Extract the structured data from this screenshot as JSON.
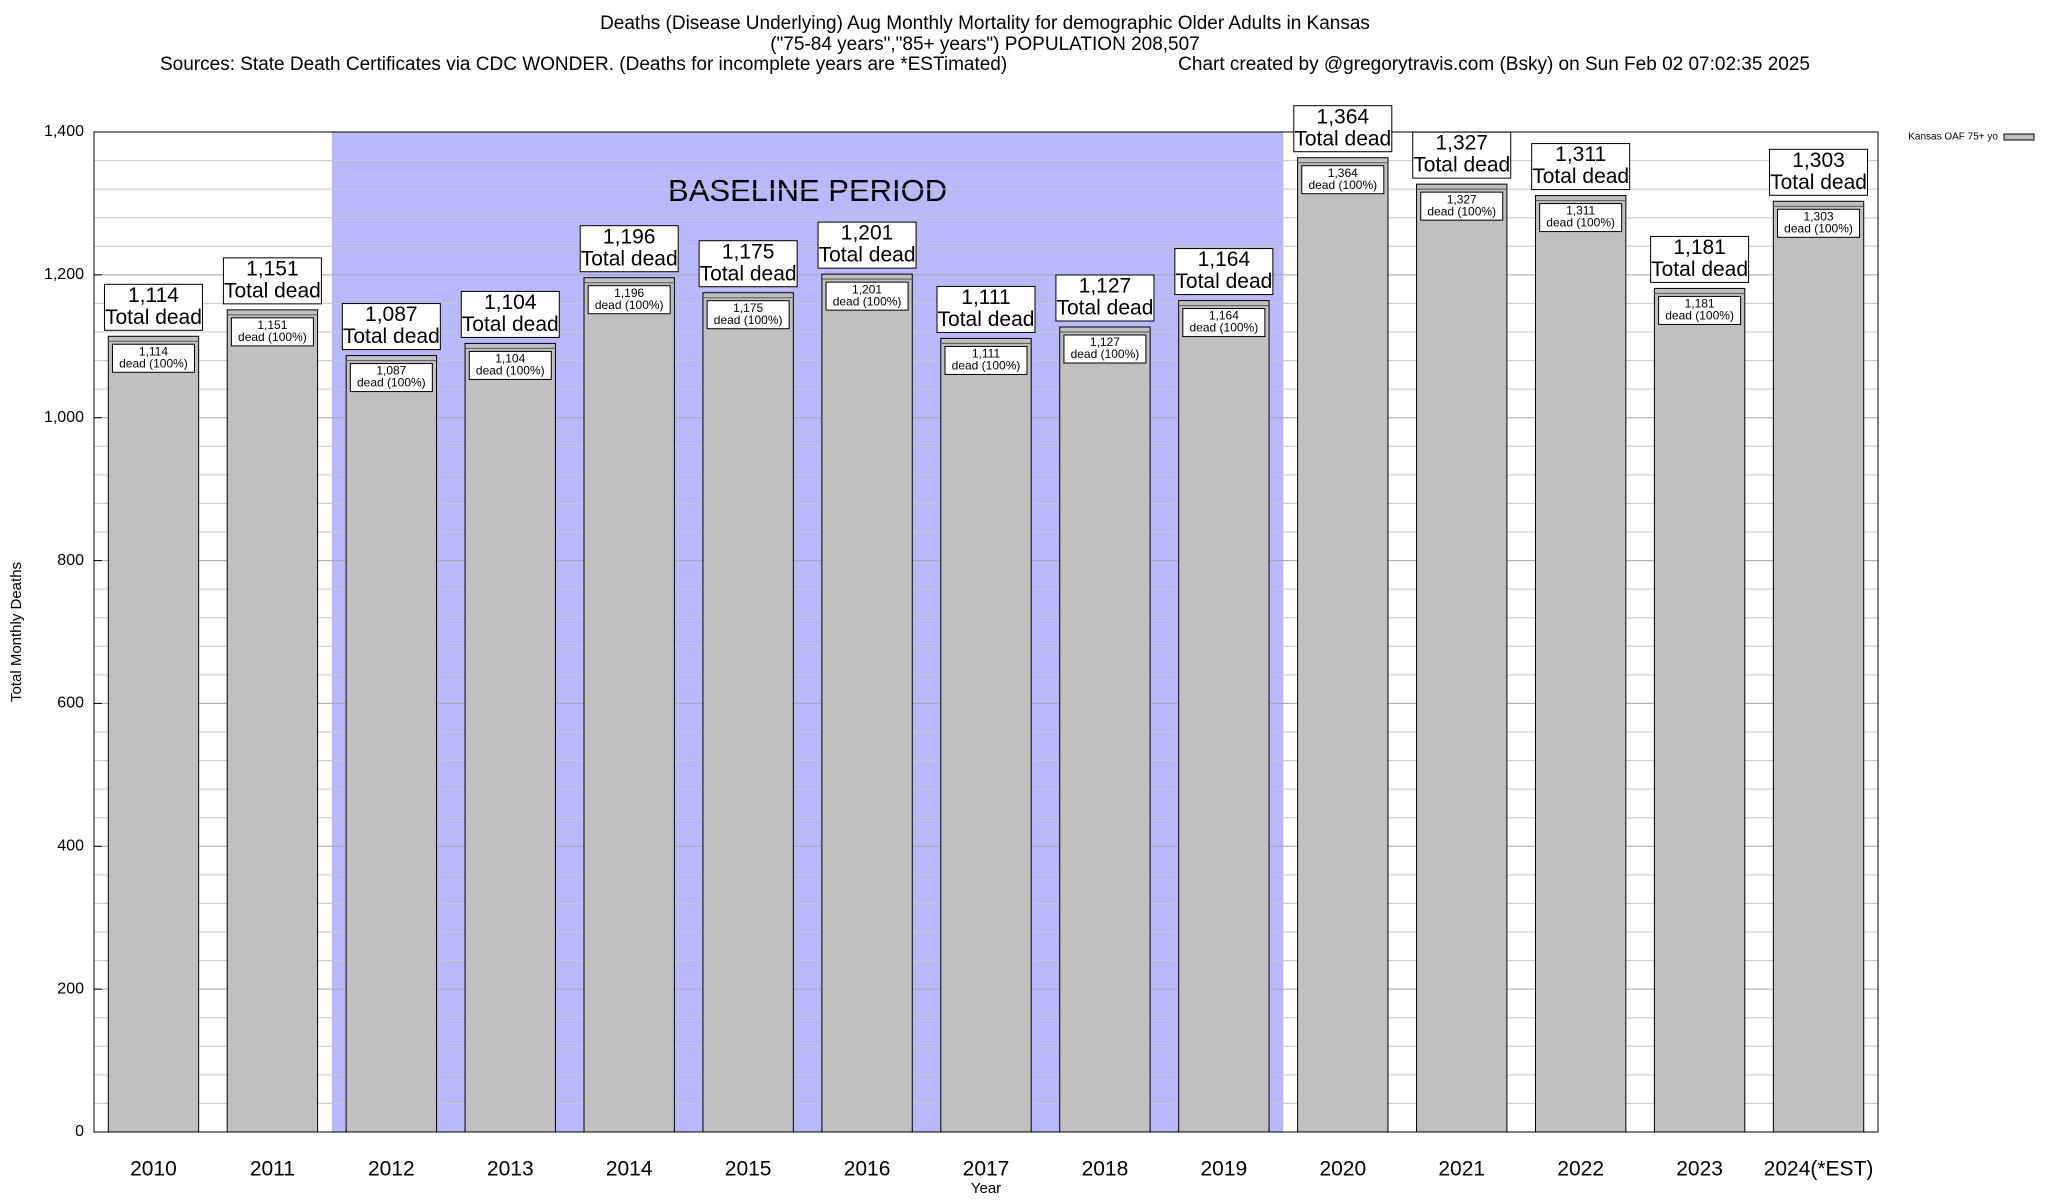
{
  "chart_data": {
    "type": "bar",
    "title": "Deaths (Disease Underlying) Aug Monthly Mortality for demographic Older Adults in Kansas",
    "subtitle": "(\"75-84 years\",\"85+ years\") POPULATION 208,507",
    "source": "Sources: State Death Certificates via CDC WONDER. (Deaths for incomplete years are *ESTimated)",
    "credit": "Chart created by @gregorytravis.com (Bsky) on Sun Feb 02 07:02:35 2025",
    "x_label": "Year",
    "y_label": "Total Monthly Deaths",
    "categories": [
      "2010",
      "2011",
      "2012",
      "2013",
      "2014",
      "2015",
      "2016",
      "2017",
      "2018",
      "2019",
      "2020",
      "2021",
      "2022",
      "2023",
      "2024(*EST)"
    ],
    "series": [
      {
        "name": "Kansas OAF 75+ yo",
        "color": "#c0c0c0",
        "values": [
          1114,
          1151,
          1087,
          1104,
          1196,
          1175,
          1201,
          1111,
          1127,
          1164,
          1364,
          1327,
          1311,
          1181,
          1303
        ],
        "value_labels": [
          "1,114",
          "1,151",
          "1,087",
          "1,104",
          "1,196",
          "1,175",
          "1,201",
          "1,111",
          "1,127",
          "1,164",
          "1,364",
          "1,327",
          "1,311",
          "1,181",
          "1,303"
        ]
      }
    ],
    "total_label": "Total dead",
    "share_label": "dead (100%)",
    "shaded_region": {
      "label": "BASELINE PERIOD",
      "from": "2012",
      "to": "2019",
      "color": "#b8b8fa"
    },
    "ylim": [
      0,
      1400
    ],
    "yticks": [
      0,
      200,
      400,
      600,
      800,
      {
        "value": 1000,
        "label": "1,000"
      },
      {
        "value": 1200,
        "label": "1,200"
      },
      {
        "value": 1400,
        "label": "1,400"
      }
    ],
    "minor_yticks": [
      40,
      80,
      120,
      160,
      240,
      280,
      320,
      360,
      440,
      480,
      520,
      560,
      640,
      680,
      720,
      760,
      840,
      880,
      920,
      960,
      1040,
      1080,
      1120,
      1160,
      1240,
      1280,
      1320,
      1360
    ],
    "grid": true,
    "legend": "top-right"
  }
}
